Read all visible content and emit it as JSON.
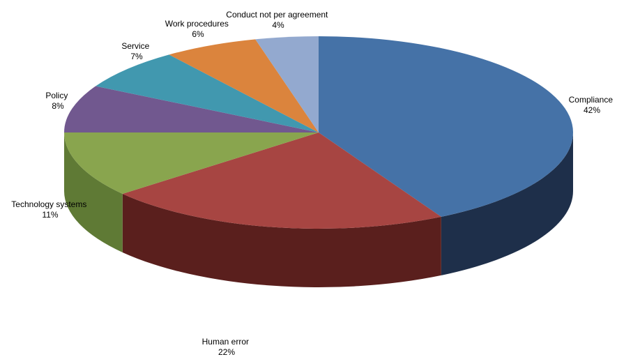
{
  "chart_data": {
    "type": "pie",
    "variant": "3d",
    "title": "",
    "legend": "none",
    "slices": [
      {
        "name": "Compliance",
        "value": 42,
        "label": "42%",
        "color": "#4572a7",
        "side_color": "#1e2f4a"
      },
      {
        "name": "Human error",
        "value": 22,
        "label": "22%",
        "color": "#a74542",
        "side_color": "#5a1f1d"
      },
      {
        "name": "Technology systems",
        "value": 11,
        "label": "11%",
        "color": "#89a54e",
        "side_color": "#5f7a35"
      },
      {
        "name": "Policy",
        "value": 8,
        "label": "8%",
        "color": "#71588f",
        "side_color": "#4b3a60"
      },
      {
        "name": "Service",
        "value": 7,
        "label": "7%",
        "color": "#4198af",
        "side_color": "#2a6676"
      },
      {
        "name": "Work procedures",
        "value": 6,
        "label": "6%",
        "color": "#db843d",
        "side_color": "#96582a"
      },
      {
        "name": "Conduct not per agreement",
        "value": 4,
        "label": "4%",
        "color": "#93a9cf",
        "side_color": "#62708a"
      }
    ]
  }
}
